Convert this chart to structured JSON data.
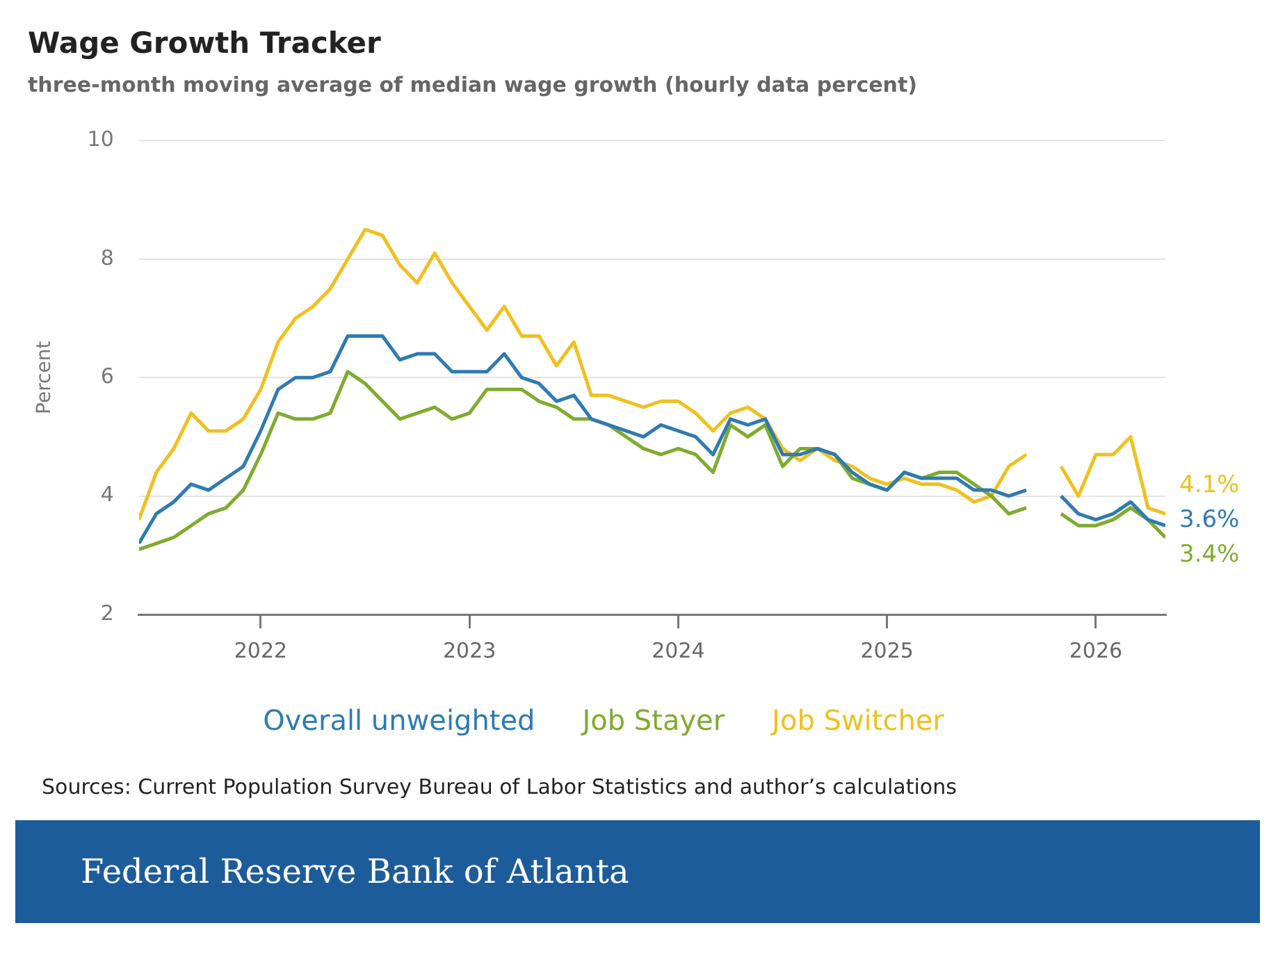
{
  "chart_data": {
    "type": "line",
    "title": "Wage Growth Tracker",
    "subtitle": "three-month moving average of median wage growth (hourly data percent)",
    "ylabel": "Percent",
    "x": [
      "2021-06",
      "2021-07",
      "2021-08",
      "2021-09",
      "2021-10",
      "2021-11",
      "2021-12",
      "2022-01",
      "2022-02",
      "2022-03",
      "2022-04",
      "2022-05",
      "2022-06",
      "2022-07",
      "2022-08",
      "2022-09",
      "2022-10",
      "2022-11",
      "2022-12",
      "2023-01",
      "2023-02",
      "2023-03",
      "2023-04",
      "2023-05",
      "2023-06",
      "2023-07",
      "2023-08",
      "2023-09",
      "2023-10",
      "2023-11",
      "2023-12",
      "2024-01",
      "2024-02",
      "2024-03",
      "2024-04",
      "2024-05",
      "2024-06",
      "2024-07",
      "2024-08",
      "2024-09",
      "2024-10",
      "2024-11",
      "2024-12",
      "2025-01",
      "2025-02",
      "2025-03",
      "2025-04",
      "2025-05",
      "2025-06",
      "2025-07",
      "2025-08",
      "2025-09",
      "2025-10",
      "2025-11",
      "2025-12",
      "2026-01",
      "2026-02",
      "2026-03",
      "2026-04",
      "2026-05"
    ],
    "series": [
      {
        "name": "Overall unweighted",
        "color": "#2e7bb0",
        "values": [
          3.2,
          3.7,
          3.9,
          4.2,
          4.1,
          4.3,
          4.5,
          5.1,
          5.8,
          6.0,
          6.0,
          6.1,
          6.7,
          6.7,
          6.7,
          6.3,
          6.4,
          6.4,
          6.1,
          6.1,
          6.1,
          6.4,
          6.0,
          5.9,
          5.6,
          5.7,
          5.3,
          5.2,
          5.1,
          5.0,
          5.2,
          5.1,
          5.0,
          4.7,
          5.3,
          5.2,
          5.3,
          4.7,
          4.7,
          4.8,
          4.7,
          4.4,
          4.2,
          4.1,
          4.4,
          4.3,
          4.3,
          4.3,
          4.1,
          4.1,
          4.0,
          4.1,
          null,
          4.0,
          3.7,
          3.6,
          3.7,
          3.9,
          3.6,
          3.5
        ]
      },
      {
        "name": "Job Stayer",
        "color": "#7fab2e",
        "values": [
          3.1,
          3.2,
          3.3,
          3.5,
          3.7,
          3.8,
          4.1,
          4.7,
          5.4,
          5.3,
          5.3,
          5.4,
          6.1,
          5.9,
          5.6,
          5.3,
          5.4,
          5.5,
          5.3,
          5.4,
          5.8,
          5.8,
          5.8,
          5.6,
          5.5,
          5.3,
          5.3,
          5.2,
          5.0,
          4.8,
          4.7,
          4.8,
          4.7,
          4.4,
          5.2,
          5.0,
          5.2,
          4.5,
          4.8,
          4.8,
          4.7,
          4.3,
          4.2,
          4.1,
          4.4,
          4.3,
          4.4,
          4.4,
          4.2,
          4.0,
          3.7,
          3.8,
          null,
          3.7,
          3.5,
          3.5,
          3.6,
          3.8,
          3.6,
          3.3
        ]
      },
      {
        "name": "Job Switcher",
        "color": "#f0c020",
        "values": [
          3.6,
          4.4,
          4.8,
          5.4,
          5.1,
          5.1,
          5.3,
          5.8,
          6.6,
          7.0,
          7.2,
          7.5,
          8.0,
          8.5,
          8.4,
          7.9,
          7.6,
          8.1,
          7.6,
          7.2,
          6.8,
          7.2,
          6.7,
          6.7,
          6.2,
          6.6,
          5.7,
          5.7,
          5.6,
          5.5,
          5.6,
          5.6,
          5.4,
          5.1,
          5.4,
          5.5,
          5.3,
          4.8,
          4.6,
          4.8,
          4.6,
          4.5,
          4.3,
          4.2,
          4.3,
          4.2,
          4.2,
          4.1,
          3.9,
          4.0,
          4.5,
          4.7,
          null,
          4.5,
          4.0,
          4.7,
          4.7,
          5.0,
          3.8,
          3.7
        ]
      }
    ],
    "xlim": [
      "2021-06",
      "2026-05"
    ],
    "xticks": [
      "2022",
      "2023",
      "2024",
      "2025",
      "2026"
    ],
    "ylim": [
      2,
      10
    ],
    "yticks": [
      2,
      4,
      6,
      8,
      10
    ],
    "grid": "y",
    "legend": "bottom",
    "marker": "none",
    "line_style": "solid",
    "annotations": [
      "4.1%",
      "3.6%",
      "3.4%",
      "Sources: Current Population Survey Bureau of Labor Statistics and author’s calculations",
      "Federal Reserve Bank of Atlanta"
    ]
  }
}
